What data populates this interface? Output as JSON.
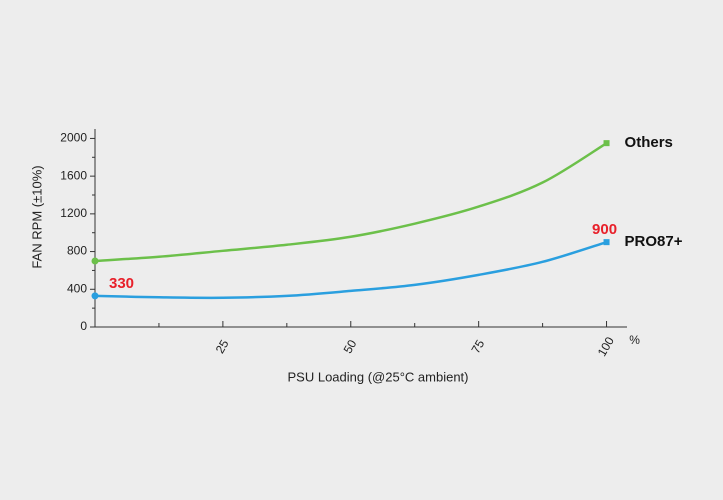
{
  "chart_data": {
    "type": "line",
    "y_label": "FAN RPM (±10%)",
    "x_label": "PSU Loading (@25°C ambient)",
    "x_unit": "%",
    "x": [
      0,
      12.5,
      25,
      37.5,
      50,
      62.5,
      75,
      87.5,
      100
    ],
    "series": [
      {
        "name": "Others",
        "color": "#6cc04a",
        "values": [
          700,
          745,
          808,
          872,
          957,
          1096,
          1277,
          1532,
          1950
        ]
      },
      {
        "name": "PRO87+",
        "color": "#2a9fdf",
        "values": [
          330,
          315,
          310,
          330,
          383,
          447,
          553,
          691,
          900
        ]
      }
    ],
    "labeled_points": [
      {
        "series": 1,
        "index": 0
      },
      {
        "series": 1,
        "index": 8
      }
    ],
    "label_color": "#e8202a",
    "xlim": [
      0,
      104
    ],
    "ylim": [
      0,
      2100
    ],
    "xticks": [
      25,
      50,
      75,
      100
    ],
    "yticks": [
      0,
      400,
      800,
      1200,
      1600,
      2000
    ],
    "xminorticks": [
      12.5,
      37.5,
      62.5,
      87.5
    ],
    "yminorticks": [
      200,
      600,
      1000,
      1400,
      1800
    ]
  }
}
